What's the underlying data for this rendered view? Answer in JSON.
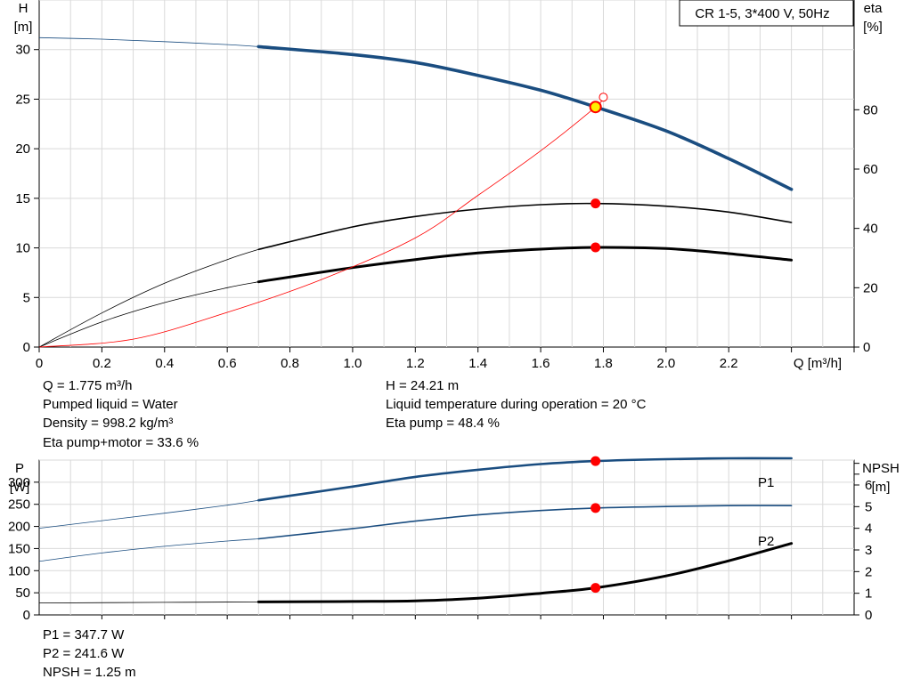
{
  "top_chart": {
    "legend": "CR 1-5, 3*400 V, 50Hz",
    "y_left_label": [
      "H",
      "[m]"
    ],
    "y_right_label": [
      "eta",
      "[%]"
    ],
    "x_label": "Q [m³/h]",
    "x_ticks": [
      "0",
      "0.2",
      "0.4",
      "0.6",
      "0.8",
      "1.0",
      "1.2",
      "1.4",
      "1.6",
      "1.8",
      "2.0",
      "2.2"
    ],
    "y_left_ticks": [
      "0",
      "5",
      "10",
      "15",
      "20",
      "25",
      "30"
    ],
    "y_right_ticks": [
      "0",
      "20",
      "40",
      "60",
      "80"
    ]
  },
  "bottom_chart": {
    "y_left_label": [
      "P",
      "[W]"
    ],
    "y_right_label": [
      "NPSH",
      "[m]"
    ],
    "y_left_ticks": [
      "0",
      "50",
      "100",
      "150",
      "200",
      "250",
      "300"
    ],
    "y_right_ticks": [
      "0",
      "1",
      "2",
      "3",
      "4",
      "5",
      "6"
    ],
    "series_labels": {
      "p1": "P1",
      "p2": "P2"
    }
  },
  "info_top": {
    "q": "Q = 1.775 m³/h",
    "h": "H = 24.21 m",
    "liquid": "Pumped liquid = Water",
    "temp": "Liquid temperature during operation = 20 °C",
    "density": "Density = 998.2 kg/m³",
    "eta_pump": "Eta pump = 48.4 %",
    "eta_total": "Eta pump+motor = 33.6 %"
  },
  "info_bottom": {
    "p1": "P1 = 347.7 W",
    "p2": "P2 = 241.6 W",
    "npsh": "NPSH = 1.25 m"
  },
  "colors": {
    "blue": "#1a4d80",
    "red": "#ff0000",
    "yellow": "#ffee00",
    "grid": "#d9d9d9",
    "black": "#000000"
  },
  "chart_data": [
    {
      "type": "line",
      "title": "CR 1-5, 3*400 V, 50Hz",
      "xlabel": "Q [m³/h]",
      "ylabel": "H [m]",
      "y2label": "eta [%]",
      "xlim": [
        0,
        2.6
      ],
      "ylim": [
        0,
        35
      ],
      "y2lim": [
        0,
        117
      ],
      "grid": true,
      "legend_position": "top-right",
      "duty_point": {
        "x": 1.775,
        "H": 24.21,
        "eta_pump": 48.4,
        "eta_total": 33.6
      },
      "series": [
        {
          "id": "head",
          "axis": "left",
          "color": "#1a4d80",
          "thick_from": 0.7,
          "x": [
            0,
            0.2,
            0.4,
            0.6,
            0.7,
            1.0,
            1.2,
            1.4,
            1.6,
            1.775,
            2.0,
            2.2,
            2.4
          ],
          "y": [
            31.2,
            31.05,
            30.8,
            30.5,
            30.3,
            29.5,
            28.7,
            27.4,
            25.9,
            24.21,
            21.8,
            19.0,
            15.9
          ]
        },
        {
          "id": "eta-pump",
          "axis": "right",
          "color": "#000000",
          "thick_from": 0.7,
          "width": 1.6,
          "x": [
            0,
            0.2,
            0.4,
            0.6,
            0.7,
            1.0,
            1.2,
            1.4,
            1.6,
            1.775,
            2.0,
            2.2,
            2.4
          ],
          "y": [
            0,
            11.5,
            21.5,
            29.5,
            32.9,
            40.5,
            44.0,
            46.5,
            48.0,
            48.4,
            47.5,
            45.5,
            42.0
          ]
        },
        {
          "id": "eta-total",
          "axis": "right",
          "color": "#000000",
          "thick_from": 0.7,
          "width": 3,
          "x": [
            0,
            0.2,
            0.4,
            0.6,
            0.7,
            1.0,
            1.2,
            1.4,
            1.6,
            1.775,
            2.0,
            2.2,
            2.4
          ],
          "y": [
            0,
            8.5,
            15,
            20,
            22,
            26.8,
            29.5,
            31.7,
            33.0,
            33.6,
            33.2,
            31.5,
            29.3
          ]
        },
        {
          "id": "system-curve",
          "axis": "left",
          "color": "#ff0000",
          "thick_from": null,
          "width": 0.8,
          "x": [
            0,
            0.3,
            0.6,
            0.9,
            1.2,
            1.4,
            1.6,
            1.775,
            1.8
          ],
          "y": [
            0,
            0.8,
            3.5,
            6.8,
            11.0,
            15.3,
            19.8,
            24.21,
            25.2
          ]
        }
      ]
    },
    {
      "type": "line",
      "xlabel": "Q [m³/h]",
      "ylabel": "P [W]",
      "y2label": "NPSH [m]",
      "xlim": [
        0,
        2.6
      ],
      "ylim": [
        0,
        350
      ],
      "y2lim": [
        0,
        7.15
      ],
      "grid": true,
      "duty_point": {
        "x": 1.775,
        "P1": 347.7,
        "P2": 241.6,
        "NPSH": 1.25
      },
      "series": [
        {
          "name": "P1",
          "axis": "left",
          "color": "#1a4d80",
          "thick_from": 0.7,
          "width": 2.6,
          "x": [
            0,
            0.2,
            0.4,
            0.6,
            0.7,
            1.0,
            1.2,
            1.4,
            1.6,
            1.775,
            2.0,
            2.2,
            2.4
          ],
          "y": [
            196,
            213,
            230,
            248,
            259,
            290,
            312,
            328,
            341,
            347.7,
            352,
            354,
            354
          ]
        },
        {
          "name": "P2",
          "axis": "left",
          "color": "#1a4d80",
          "thick_from": 0.7,
          "width": 1.6,
          "x": [
            0,
            0.2,
            0.4,
            0.6,
            0.7,
            1.0,
            1.2,
            1.4,
            1.6,
            1.775,
            2.0,
            2.2,
            2.4
          ],
          "y": [
            121,
            140,
            155,
            167,
            172,
            195,
            212,
            226,
            236,
            241.6,
            245,
            247,
            247
          ]
        },
        {
          "id": "npsh",
          "axis": "right",
          "color": "#000000",
          "thick_from": 0.7,
          "width": 3,
          "x": [
            0,
            0.4,
            0.7,
            1.0,
            1.2,
            1.4,
            1.6,
            1.775,
            2.0,
            2.2,
            2.4
          ],
          "y": [
            0.55,
            0.58,
            0.6,
            0.62,
            0.65,
            0.77,
            1.0,
            1.25,
            1.8,
            2.5,
            3.3
          ]
        }
      ]
    }
  ]
}
